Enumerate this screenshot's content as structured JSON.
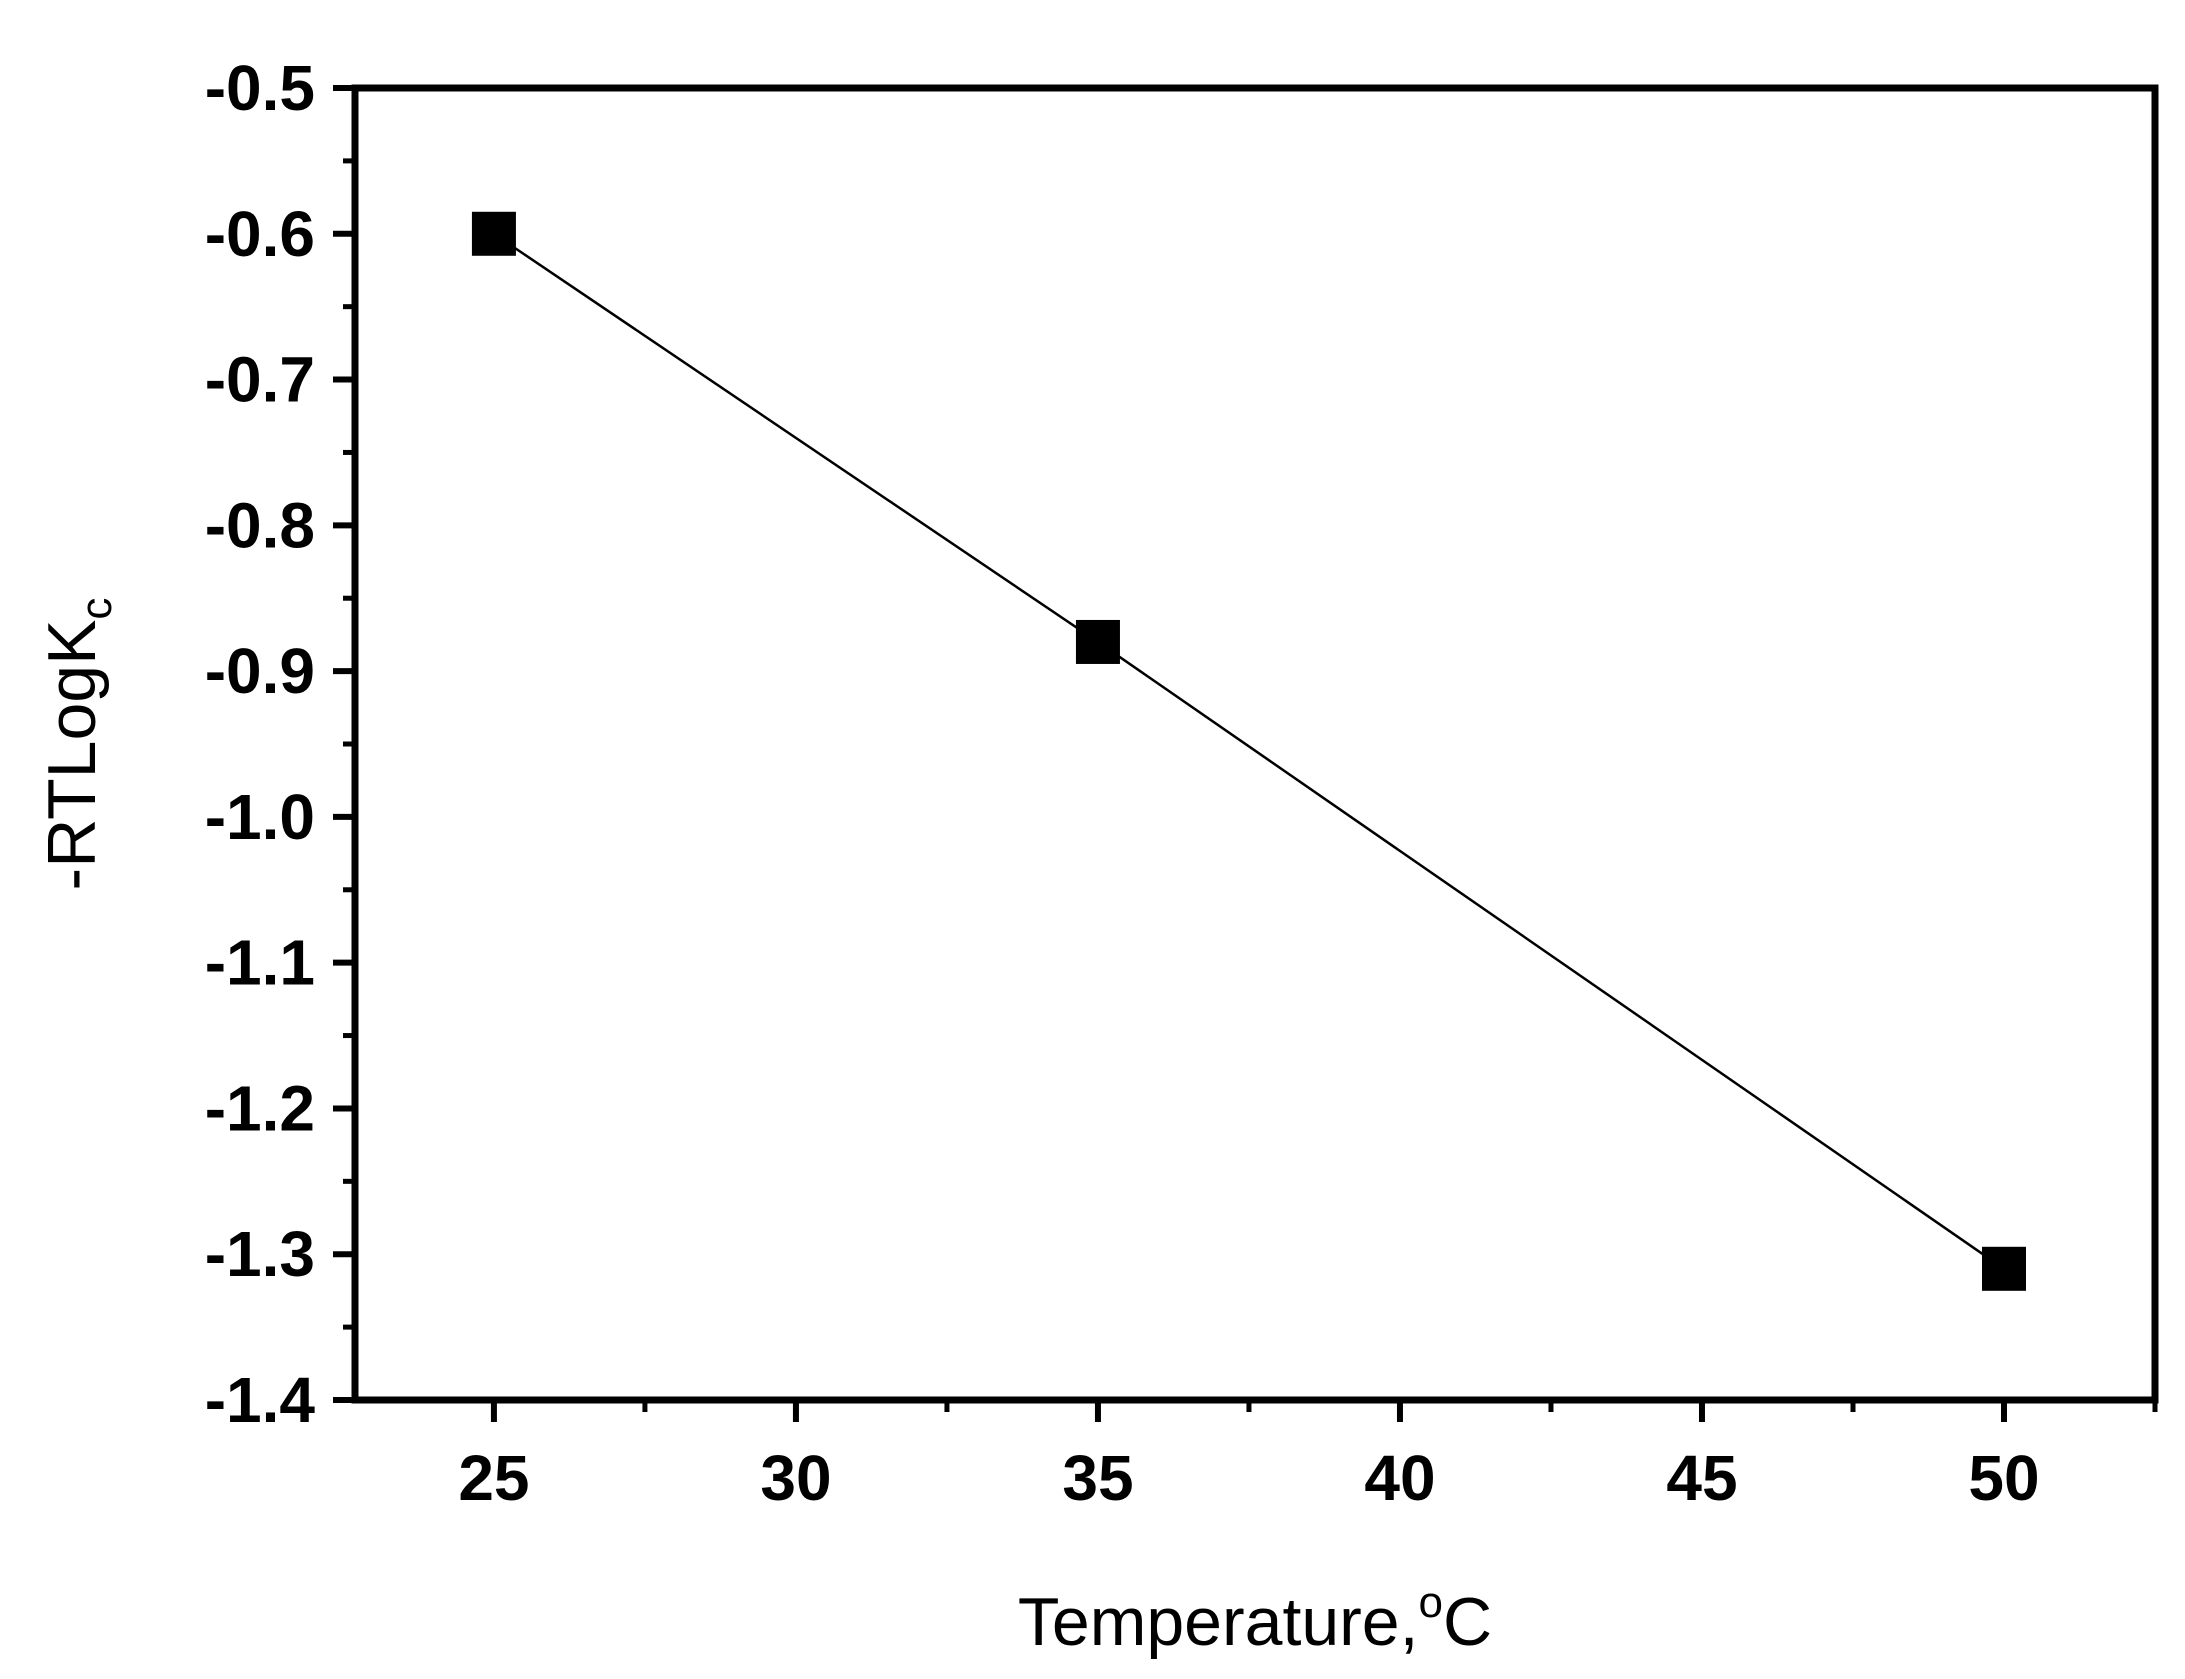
{
  "chart_data": {
    "type": "line",
    "title": "",
    "xlabel": {
      "text": "Temperature,",
      "superscript": "o",
      "unit": "C"
    },
    "ylabel": {
      "text": "-RTLogK",
      "subscript": "c"
    },
    "x": [
      25,
      35,
      50
    ],
    "series": [
      {
        "values": [
          -0.6,
          -0.88,
          -1.31
        ],
        "marker": "square",
        "color": "#000000"
      }
    ],
    "xlim": [
      22.7,
      52.5
    ],
    "ylim": [
      -1.4,
      -0.5
    ],
    "xticks": [
      "25",
      "30",
      "35",
      "40",
      "45",
      "50"
    ],
    "yticks": [
      "-0.5",
      "-0.6",
      "-0.7",
      "-0.8",
      "-0.9",
      "-1.0",
      "-1.1",
      "-1.2",
      "-1.3",
      "-1.4"
    ],
    "grid": false,
    "legend": "none"
  }
}
